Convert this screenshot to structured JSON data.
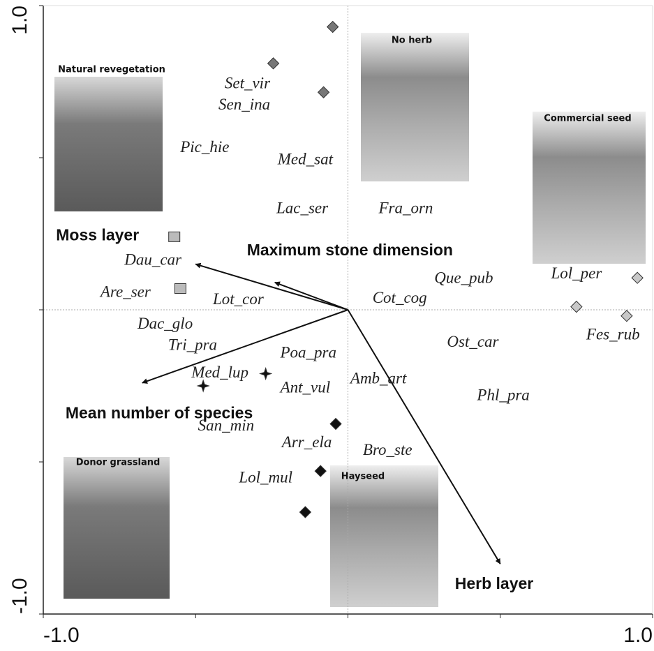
{
  "chart_data": {
    "type": "scatter",
    "xlim": [
      -1,
      1
    ],
    "ylim": [
      -1,
      1
    ],
    "xticks": [
      {
        "value": -1,
        "label": "-1.0"
      },
      {
        "value": 1,
        "label": "1.0"
      }
    ],
    "yticks": [
      {
        "value": -1,
        "label": "-1.0"
      },
      {
        "value": 1,
        "label": "1.0"
      }
    ],
    "minor_ticks": [
      -0.5,
      0,
      0.5
    ],
    "zero_lines": true,
    "series": [
      {
        "name": "No herb",
        "color": "#777777",
        "marker": "diamond",
        "x": [
          -0.05,
          -0.245,
          -0.08
        ],
        "y": [
          0.93,
          0.81,
          0.715
        ]
      },
      {
        "name": "Natural revegetation",
        "color": "#bbbbbb",
        "marker": "square",
        "x": [
          -0.57,
          -0.55
        ],
        "y": [
          0.24,
          0.07
        ]
      },
      {
        "name": "Commercial seed",
        "color": "#c8c8c8",
        "marker": "diamond",
        "x": [
          0.95,
          0.75,
          0.915
        ],
        "y": [
          0.105,
          0.01,
          -0.02
        ]
      },
      {
        "name": "Donor grassland",
        "color": "#111111",
        "marker": "star",
        "x": [
          -0.27,
          -0.475
        ],
        "y": [
          -0.21,
          -0.25
        ]
      },
      {
        "name": "Hayseed",
        "color": "#111111",
        "marker": "diamond",
        "x": [
          -0.04,
          -0.09,
          -0.14
        ],
        "y": [
          -0.375,
          -0.53,
          -0.665
        ]
      }
    ],
    "species": {
      "names": [
        "Set_vir",
        "Sen_ina",
        "Pic_hie",
        "Med_sat",
        "Lac_ser",
        "Fra_orn",
        "Dau_car",
        "Are_ser",
        "Lot_cor",
        "Que_pub",
        "Lol_per",
        "Cot_cog",
        "Fes_rub",
        "Dac_glo",
        "Tri_pra",
        "Poa_pra",
        "Ost_car",
        "Med_lup",
        "Amb_art",
        "Ant_vul",
        "Phl_pra",
        "San_min",
        "Arr_ela",
        "Bro_ste",
        "Lol_mul"
      ],
      "x": [
        -0.33,
        -0.34,
        -0.47,
        -0.14,
        -0.15,
        0.19,
        -0.64,
        -0.73,
        -0.36,
        0.38,
        0.75,
        0.17,
        0.87,
        -0.6,
        -0.51,
        -0.13,
        0.41,
        -0.42,
        0.1,
        -0.14,
        0.51,
        -0.4,
        -0.135,
        0.13,
        -0.27
      ],
      "y": [
        0.74,
        0.67,
        0.53,
        0.49,
        0.33,
        0.33,
        0.16,
        0.055,
        0.03,
        0.1,
        0.115,
        0.035,
        -0.085,
        -0.05,
        -0.12,
        -0.145,
        -0.11,
        -0.21,
        -0.23,
        -0.26,
        -0.285,
        -0.385,
        -0.44,
        -0.465,
        -0.555
      ]
    },
    "vectors": {
      "names": [
        "Moss layer",
        "Maximum stone dimension",
        "Mean number of species",
        "Herb layer"
      ],
      "x": [
        -0.5,
        -0.24,
        -0.675,
        0.5
      ],
      "y": [
        0.15,
        0.09,
        -0.24,
        -0.835
      ]
    }
  }
}
